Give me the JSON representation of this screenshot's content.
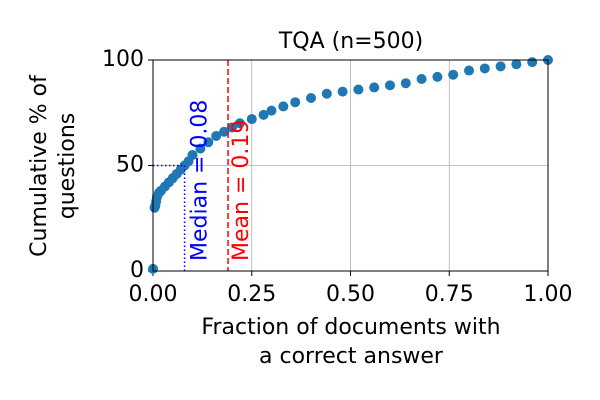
{
  "chart_data": {
    "type": "scatter",
    "title": "TQA (n=500)",
    "xlabel": [
      "Fraction of documents with",
      "a correct answer"
    ],
    "ylabel": [
      "Cumulative % of",
      "questions"
    ],
    "color": "#1f77b4",
    "x": [
      0.0,
      0.004,
      0.006,
      0.008,
      0.01,
      0.015,
      0.02,
      0.03,
      0.04,
      0.05,
      0.06,
      0.07,
      0.08,
      0.09,
      0.1,
      0.12,
      0.14,
      0.16,
      0.18,
      0.2,
      0.22,
      0.25,
      0.28,
      0.3,
      0.33,
      0.36,
      0.4,
      0.44,
      0.48,
      0.52,
      0.56,
      0.6,
      0.64,
      0.68,
      0.72,
      0.76,
      0.8,
      0.84,
      0.88,
      0.92,
      0.96,
      1.0
    ],
    "values": [
      1,
      30,
      31,
      33,
      35,
      37,
      38,
      40,
      42,
      44,
      46,
      48,
      50,
      52,
      55,
      58,
      61,
      64,
      66,
      68,
      70,
      72,
      74,
      76,
      78,
      80,
      82,
      84,
      85,
      86,
      87,
      88,
      89,
      91,
      92,
      93,
      95,
      96,
      97,
      98,
      99,
      100
    ],
    "xlim": [
      0,
      1
    ],
    "ylim": [
      0,
      100
    ],
    "xticks": [
      {
        "value": 0,
        "label": "0.00"
      },
      {
        "value": 0.25,
        "label": "0.25"
      },
      {
        "value": 0.5,
        "label": "0.50"
      },
      {
        "value": 0.75,
        "label": "0.75"
      },
      {
        "value": 1,
        "label": "1.00"
      }
    ],
    "yticks": [
      0,
      50,
      100
    ],
    "grid": true,
    "median": {
      "value": 0.08,
      "y": 50,
      "label": "Median = 0.08",
      "color": "#0000ff"
    },
    "mean": {
      "value": 0.19,
      "label": "Mean = 0.19",
      "color": "#ff0000"
    }
  }
}
